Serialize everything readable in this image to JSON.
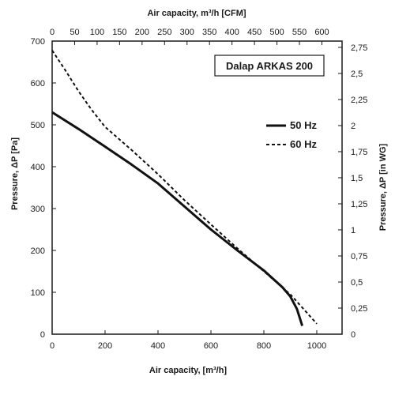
{
  "chart_data": {
    "type": "line",
    "title": "Dalap ARKAS 200",
    "xlabel": "Air capacity, [m³/h]",
    "x2label": "Air capacity, m³/h [CFM]",
    "ylabel": "Pressure, ΔP [Pa]",
    "y2label": "Pressure, ΔP [in WG]",
    "xlim": [
      0,
      1100
    ],
    "ylim": [
      0,
      700
    ],
    "x_ticks": [
      "0",
      "200",
      "400",
      "600",
      "800",
      "1000"
    ],
    "x_tick_values": [
      0,
      200,
      400,
      600,
      800,
      1000
    ],
    "y_ticks": [
      "0",
      "100",
      "200",
      "300",
      "400",
      "500",
      "600",
      "700"
    ],
    "y_tick_values": [
      0,
      100,
      200,
      300,
      400,
      500,
      600,
      700
    ],
    "x2_ticks": [
      "0",
      "50",
      "100",
      "150",
      "200",
      "250",
      "300",
      "350",
      "400",
      "450",
      "500",
      "550",
      "600"
    ],
    "x2_tick_values": [
      0,
      50,
      100,
      150,
      200,
      250,
      300,
      350,
      400,
      450,
      500,
      550,
      600
    ],
    "y2_ticks": [
      "0",
      "0,25",
      "0,5",
      "0,75",
      "1",
      "1,25",
      "1,5",
      "1,75",
      "2",
      "2,25",
      "2,5",
      "2,75"
    ],
    "y2_tick_values": [
      0,
      0.25,
      0.5,
      0.75,
      1,
      1.25,
      1.5,
      1.75,
      2,
      2.25,
      2.5,
      2.75
    ],
    "grid": false,
    "legend_position": "right",
    "series": [
      {
        "name": "50 Hz",
        "style": "solid",
        "color": "#111111",
        "x": [
          0,
          100,
          200,
          300,
          400,
          500,
          600,
          700,
          800,
          870,
          900,
          925,
          945
        ],
        "y": [
          530,
          490,
          448,
          405,
          360,
          305,
          250,
          200,
          152,
          112,
          90,
          60,
          20
        ]
      },
      {
        "name": "60 Hz",
        "style": "dashed",
        "color": "#111111",
        "x": [
          0,
          50,
          100,
          150,
          200,
          300,
          400,
          500,
          600,
          700,
          800,
          900,
          950,
          1000
        ],
        "y": [
          678,
          630,
          580,
          535,
          495,
          440,
          382,
          320,
          262,
          205,
          150,
          95,
          60,
          25
        ]
      }
    ]
  }
}
